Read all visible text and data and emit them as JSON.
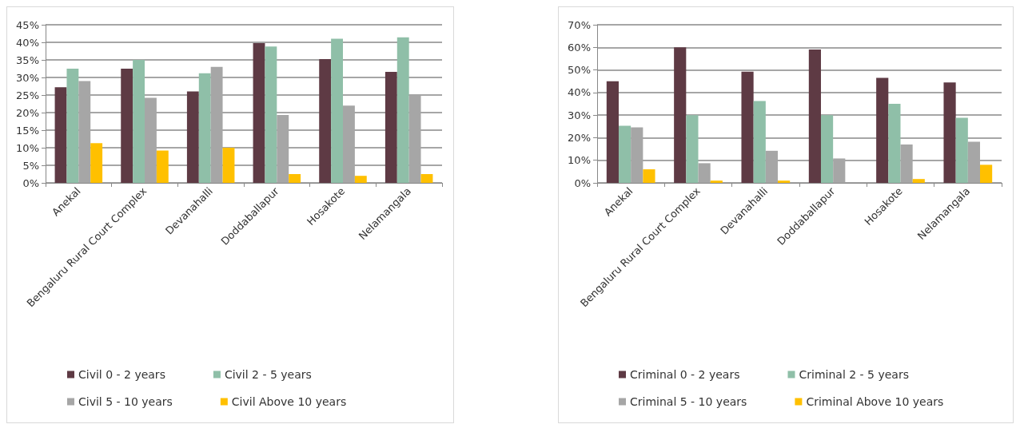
{
  "chart_data": [
    {
      "type": "bar",
      "categories": [
        "Anekal",
        "Bengaluru Rural Court Complex",
        "Devanahalli",
        "Doddaballapur",
        "Hosakote",
        "Nelamangala"
      ],
      "series": [
        {
          "name": "Civil 0 - 2 years",
          "color": "#5e3a44",
          "values": [
            27.2,
            32.5,
            26,
            39.8,
            35.2,
            31.6
          ]
        },
        {
          "name": "Civil 2 - 5 years",
          "color": "#8fbfa8",
          "values": [
            32.5,
            35,
            31.2,
            38.8,
            41,
            41.4
          ]
        },
        {
          "name": "Civil 5 - 10 years",
          "color": "#a6a6a6",
          "values": [
            29,
            24.2,
            33,
            19.3,
            22,
            25
          ]
        },
        {
          "name": "Civil Above 10 years",
          "color": "#ffc000",
          "values": [
            11.3,
            9.2,
            10,
            2.5,
            2,
            2.5
          ]
        }
      ],
      "ylim": [
        0,
        45
      ],
      "yticks": [
        {
          "value": 0,
          "label": "0%"
        },
        {
          "value": 5,
          "label": "5%"
        },
        {
          "value": 10,
          "label": "10%"
        },
        {
          "value": 15,
          "label": "15%"
        },
        {
          "value": 20,
          "label": "20%"
        },
        {
          "value": 25,
          "label": "25%"
        },
        {
          "value": 30,
          "label": "30%"
        },
        {
          "value": 35,
          "label": "35%"
        },
        {
          "value": 40,
          "label": "40%"
        },
        {
          "value": 45,
          "label": "45%"
        }
      ],
      "grid": "y",
      "legend": "bottom"
    },
    {
      "type": "bar",
      "categories": [
        "Anekal",
        "Bengaluru Rural Court Complex",
        "Devanahalli",
        "Doddaballapur",
        "Hosakote",
        "Nelamangala"
      ],
      "series": [
        {
          "name": "Criminal 0 - 2 years",
          "color": "#5e3a44",
          "values": [
            45,
            60,
            49.2,
            59,
            46.5,
            44.5
          ]
        },
        {
          "name": "Criminal 2 - 5 years",
          "color": "#8fbfa8",
          "values": [
            25.3,
            30,
            36.2,
            30,
            35,
            28.8
          ]
        },
        {
          "name": "Criminal 5 - 10 years",
          "color": "#a6a6a6",
          "values": [
            24.6,
            8.7,
            14.2,
            10.8,
            17,
            18.2
          ]
        },
        {
          "name": "Criminal Above 10 years",
          "color": "#ffc000",
          "values": [
            6,
            1,
            1,
            0,
            1.7,
            8
          ]
        }
      ],
      "ylim": [
        0,
        70
      ],
      "yticks": [
        {
          "value": 0,
          "label": "0%"
        },
        {
          "value": 10,
          "label": "10%"
        },
        {
          "value": 20,
          "label": "20%"
        },
        {
          "value": 30,
          "label": "30%"
        },
        {
          "value": 40,
          "label": "40%"
        },
        {
          "value": 50,
          "label": "50%"
        },
        {
          "value": 60,
          "label": "60%"
        },
        {
          "value": 70,
          "label": "70%"
        }
      ],
      "grid": "y",
      "legend": "bottom"
    }
  ]
}
